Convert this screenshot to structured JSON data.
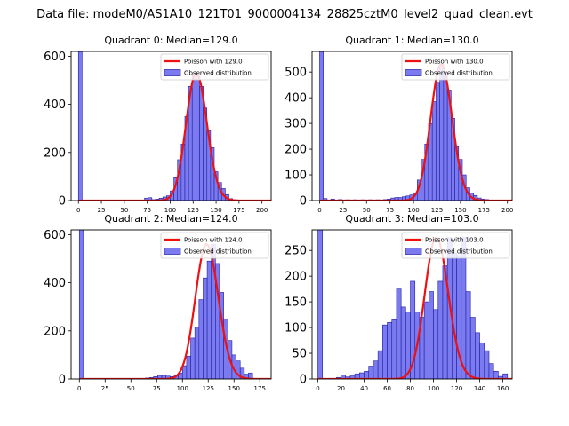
{
  "suptitle": "Data file: modeM0/AS1A10_121T01_9000004134_28825cztM0_level2_quad_clean.evt",
  "colors": {
    "bar_fill": "#7b7bef",
    "bar_edge": "#1f1fa8",
    "poisson": "#ee1111"
  },
  "chart_data": [
    {
      "type": "bar",
      "title": "Quadrant 0: Median=129.0",
      "median": 129.0,
      "bin_width": 4,
      "xlim": [
        -8,
        210
      ],
      "ylim": [
        0,
        620
      ],
      "xticks": [
        0,
        25,
        50,
        75,
        100,
        125,
        150,
        175,
        200
      ],
      "yticks": [
        0,
        200,
        400,
        600
      ],
      "bars": [
        [
          0,
          620
        ],
        [
          72,
          10
        ],
        [
          76,
          12
        ],
        [
          80,
          4
        ],
        [
          84,
          6
        ],
        [
          88,
          10
        ],
        [
          92,
          15
        ],
        [
          96,
          20
        ],
        [
          100,
          40
        ],
        [
          104,
          95
        ],
        [
          108,
          170
        ],
        [
          112,
          235
        ],
        [
          116,
          350
        ],
        [
          120,
          475
        ],
        [
          124,
          530
        ],
        [
          128,
          520
        ],
        [
          132,
          475
        ],
        [
          136,
          385
        ],
        [
          140,
          290
        ],
        [
          144,
          220
        ],
        [
          148,
          120
        ],
        [
          152,
          75
        ],
        [
          156,
          50
        ],
        [
          160,
          25
        ],
        [
          164,
          8
        ],
        [
          168,
          4
        ]
      ],
      "legend": [
        {
          "kind": "line",
          "label": "Poisson with 129.0"
        },
        {
          "kind": "bar",
          "label": "Observed distribution"
        }
      ]
    },
    {
      "type": "bar",
      "title": "Quadrant 1: Median=130.0",
      "median": 130.0,
      "bin_width": 4,
      "xlim": [
        -8,
        205
      ],
      "ylim": [
        0,
        580
      ],
      "xticks": [
        0,
        25,
        50,
        75,
        100,
        125,
        150,
        175,
        200
      ],
      "yticks": [
        0,
        100,
        200,
        300,
        400,
        500
      ],
      "bars": [
        [
          0,
          580
        ],
        [
          4,
          8
        ],
        [
          12,
          6
        ],
        [
          20,
          4
        ],
        [
          28,
          3
        ],
        [
          36,
          3
        ],
        [
          44,
          3
        ],
        [
          52,
          3
        ],
        [
          60,
          3
        ],
        [
          68,
          4
        ],
        [
          72,
          6
        ],
        [
          76,
          10
        ],
        [
          80,
          12
        ],
        [
          84,
          12
        ],
        [
          88,
          15
        ],
        [
          92,
          18
        ],
        [
          96,
          22
        ],
        [
          100,
          30
        ],
        [
          104,
          80
        ],
        [
          108,
          160
        ],
        [
          112,
          220
        ],
        [
          116,
          300
        ],
        [
          120,
          385
        ],
        [
          124,
          460
        ],
        [
          128,
          530
        ],
        [
          132,
          500
        ],
        [
          136,
          430
        ],
        [
          140,
          320
        ],
        [
          144,
          210
        ],
        [
          148,
          160
        ],
        [
          152,
          100
        ],
        [
          156,
          50
        ],
        [
          160,
          30
        ],
        [
          164,
          20
        ],
        [
          168,
          10
        ],
        [
          172,
          6
        ],
        [
          176,
          4
        ],
        [
          184,
          2
        ],
        [
          192,
          1
        ]
      ],
      "legend": [
        {
          "kind": "line",
          "label": "Poisson with 130.0"
        },
        {
          "kind": "bar",
          "label": "Observed distribution"
        }
      ]
    },
    {
      "type": "bar",
      "title": "Quadrant 2: Median=124.0",
      "median": 124.0,
      "bin_width": 4,
      "xlim": [
        -8,
        186
      ],
      "ylim": [
        0,
        620
      ],
      "xticks": [
        0,
        25,
        50,
        75,
        100,
        125,
        150,
        175
      ],
      "yticks": [
        0,
        200,
        400,
        600
      ],
      "bars": [
        [
          0,
          620
        ],
        [
          64,
          4
        ],
        [
          68,
          6
        ],
        [
          72,
          10
        ],
        [
          76,
          15
        ],
        [
          80,
          15
        ],
        [
          84,
          12
        ],
        [
          88,
          10
        ],
        [
          92,
          15
        ],
        [
          96,
          25
        ],
        [
          100,
          55
        ],
        [
          104,
          95
        ],
        [
          108,
          170
        ],
        [
          112,
          215
        ],
        [
          116,
          330
        ],
        [
          120,
          420
        ],
        [
          124,
          490
        ],
        [
          128,
          560
        ],
        [
          132,
          480
        ],
        [
          136,
          360
        ],
        [
          140,
          250
        ],
        [
          144,
          160
        ],
        [
          148,
          100
        ],
        [
          152,
          75
        ],
        [
          156,
          45
        ],
        [
          160,
          20
        ],
        [
          164,
          25
        ]
      ],
      "legend": [
        {
          "kind": "line",
          "label": "Poisson with 124.0"
        },
        {
          "kind": "bar",
          "label": "Observed distribution"
        }
      ]
    },
    {
      "type": "bar",
      "title": "Quadrant 3: Median=103.0",
      "median": 103.0,
      "bin_width": 4,
      "xlim": [
        -5,
        168
      ],
      "ylim": [
        0,
        290
      ],
      "xticks": [
        0,
        20,
        40,
        60,
        80,
        100,
        120,
        140,
        160
      ],
      "yticks": [
        0,
        50,
        100,
        150,
        200,
        250
      ],
      "bars": [
        [
          0,
          290
        ],
        [
          16,
          3
        ],
        [
          20,
          8
        ],
        [
          24,
          4
        ],
        [
          28,
          6
        ],
        [
          32,
          10
        ],
        [
          36,
          12
        ],
        [
          40,
          15
        ],
        [
          44,
          25
        ],
        [
          48,
          35
        ],
        [
          52,
          55
        ],
        [
          56,
          105
        ],
        [
          60,
          110
        ],
        [
          64,
          115
        ],
        [
          68,
          175
        ],
        [
          72,
          140
        ],
        [
          76,
          130
        ],
        [
          80,
          190
        ],
        [
          84,
          130
        ],
        [
          88,
          120
        ],
        [
          92,
          150
        ],
        [
          96,
          170
        ],
        [
          100,
          135
        ],
        [
          104,
          190
        ],
        [
          108,
          220
        ],
        [
          112,
          275
        ],
        [
          116,
          245
        ],
        [
          120,
          240
        ],
        [
          124,
          275
        ],
        [
          128,
          170
        ],
        [
          132,
          120
        ],
        [
          136,
          90
        ],
        [
          140,
          70
        ],
        [
          144,
          55
        ],
        [
          148,
          30
        ],
        [
          152,
          15
        ],
        [
          156,
          5
        ],
        [
          160,
          10
        ]
      ],
      "legend": [
        {
          "kind": "line",
          "label": "Poisson with 103.0"
        },
        {
          "kind": "bar",
          "label": "Observed distribution"
        }
      ]
    }
  ]
}
